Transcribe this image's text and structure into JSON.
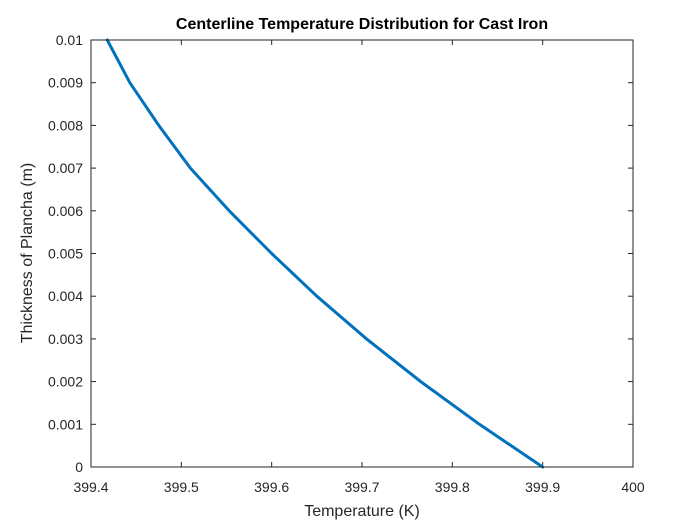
{
  "chart_data": {
    "type": "line",
    "title": "Centerline Temperature Distribution for Cast Iron",
    "xlabel": "Temperature (K)",
    "ylabel": "Thickness of Plancha (m)",
    "xlim": [
      399.4,
      400
    ],
    "ylim": [
      0,
      0.01
    ],
    "xticks": [
      399.4,
      399.5,
      399.6,
      399.7,
      399.8,
      399.9,
      400
    ],
    "xtick_labels": [
      "399.4",
      "399.5",
      "399.6",
      "399.7",
      "399.8",
      "399.9",
      "400"
    ],
    "yticks": [
      0,
      0.001,
      0.002,
      0.003,
      0.004,
      0.005,
      0.006,
      0.007,
      0.008,
      0.009,
      0.01
    ],
    "ytick_labels": [
      "0",
      "0.001",
      "0.002",
      "0.003",
      "0.004",
      "0.005",
      "0.006",
      "0.007",
      "0.008",
      "0.009",
      "0.01"
    ],
    "grid": false,
    "legend": "none",
    "series": [
      {
        "color": "#0072bd",
        "x": [
          399.9,
          399.83,
          399.765,
          399.705,
          399.65,
          399.6,
          399.553,
          399.51,
          399.475,
          399.443,
          399.418
        ],
        "y": [
          0,
          0.001,
          0.002,
          0.003,
          0.004,
          0.005,
          0.006,
          0.007,
          0.008,
          0.009,
          0.01
        ]
      }
    ]
  }
}
